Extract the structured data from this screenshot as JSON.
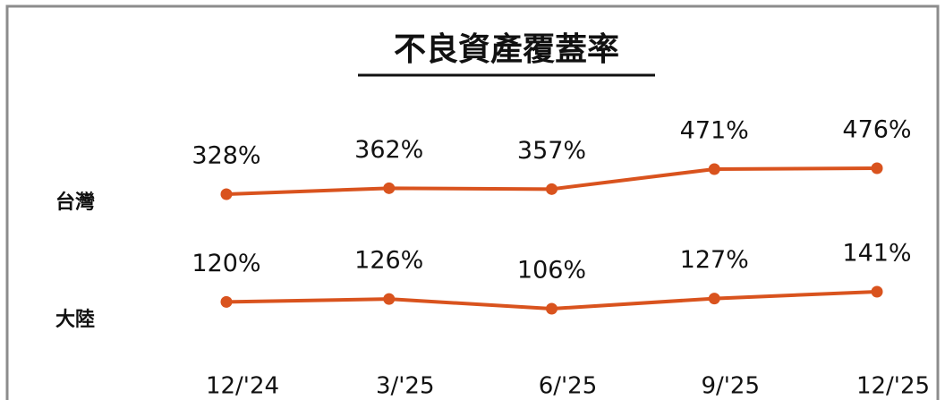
{
  "chart_data": {
    "type": "line",
    "title": "不良資產覆蓋率",
    "categories": [
      "12/'24",
      "3/'25",
      "6/'25",
      "9/'25",
      "12/'25"
    ],
    "series": [
      {
        "name": "台灣",
        "color": "#d9531e",
        "values": [
          328,
          362,
          357,
          471,
          476
        ],
        "value_labels": [
          "328%",
          "362%",
          "357%",
          "471%",
          "476%"
        ]
      },
      {
        "name": "大陸",
        "color": "#d9531e",
        "values": [
          120,
          126,
          106,
          127,
          141
        ],
        "value_labels": [
          "120%",
          "126%",
          "106%",
          "127%",
          "141%"
        ]
      }
    ]
  }
}
